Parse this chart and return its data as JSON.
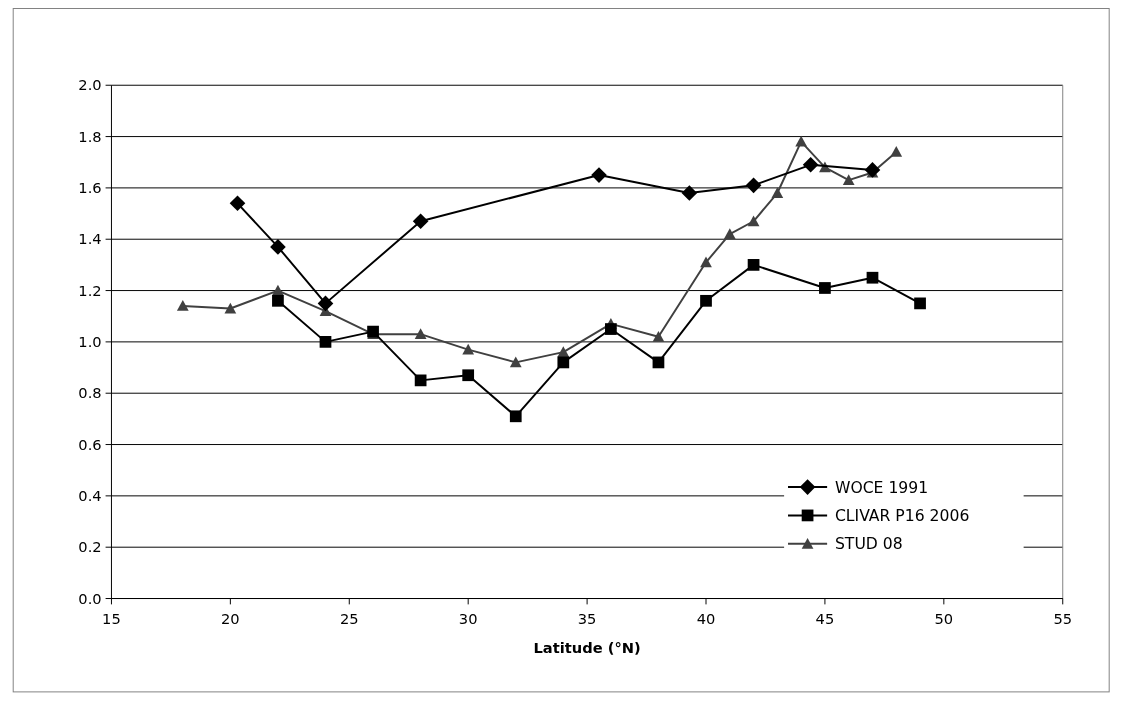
{
  "chart_data": {
    "type": "line",
    "xlabel": "Latitude (°N)",
    "xlim": [
      15,
      55
    ],
    "xticks": [
      15,
      20,
      25,
      30,
      35,
      40,
      45,
      50,
      55
    ],
    "ylim": [
      0,
      2
    ],
    "yticks": [
      {
        "value": 0,
        "label": "0.0"
      },
      {
        "value": 0.2,
        "label": "0.2"
      },
      {
        "value": 0.4,
        "label": "0.4"
      },
      {
        "value": 0.6,
        "label": "0.6"
      },
      {
        "value": 0.8,
        "label": "0.8"
      },
      {
        "value": 1,
        "label": "1.0"
      },
      {
        "value": 1.2,
        "label": "1.2"
      },
      {
        "value": 1.4,
        "label": "1.4"
      },
      {
        "value": 1.6,
        "label": "1.6"
      },
      {
        "value": 1.8,
        "label": "1.8"
      },
      {
        "value": 2,
        "label": "2.0"
      }
    ],
    "grid": "y",
    "legend": "bottom right",
    "series": [
      {
        "name": "WOCE 1991",
        "color": "#000000",
        "marker": "diamond",
        "x": [
          20.3,
          22,
          24,
          28,
          35.5,
          39.3,
          42,
          44.4,
          47
        ],
        "values": [
          1.54,
          1.37,
          1.15,
          1.47,
          1.65,
          1.58,
          1.61,
          1.69,
          1.67
        ]
      },
      {
        "name": "CLIVAR P16 2006",
        "color": "#000000",
        "marker": "square",
        "x": [
          22,
          24,
          26,
          28,
          30,
          32,
          34,
          36,
          38,
          40,
          42,
          45,
          47,
          49
        ],
        "values": [
          1.16,
          1.0,
          1.04,
          0.85,
          0.87,
          0.71,
          0.92,
          1.05,
          0.92,
          1.16,
          1.3,
          1.21,
          1.25,
          1.15
        ]
      },
      {
        "name": "STUD 08",
        "color": "#404040",
        "marker": "triangle",
        "x": [
          18,
          20,
          22,
          24,
          26,
          28,
          30,
          32,
          34,
          36,
          38,
          40,
          41,
          42,
          43,
          44,
          45,
          46,
          47,
          48
        ],
        "values": [
          1.14,
          1.13,
          1.2,
          1.12,
          1.03,
          1.03,
          0.97,
          0.92,
          0.96,
          1.07,
          1.02,
          1.31,
          1.42,
          1.47,
          1.58,
          1.78,
          1.68,
          1.63,
          1.66,
          1.74
        ]
      }
    ]
  }
}
